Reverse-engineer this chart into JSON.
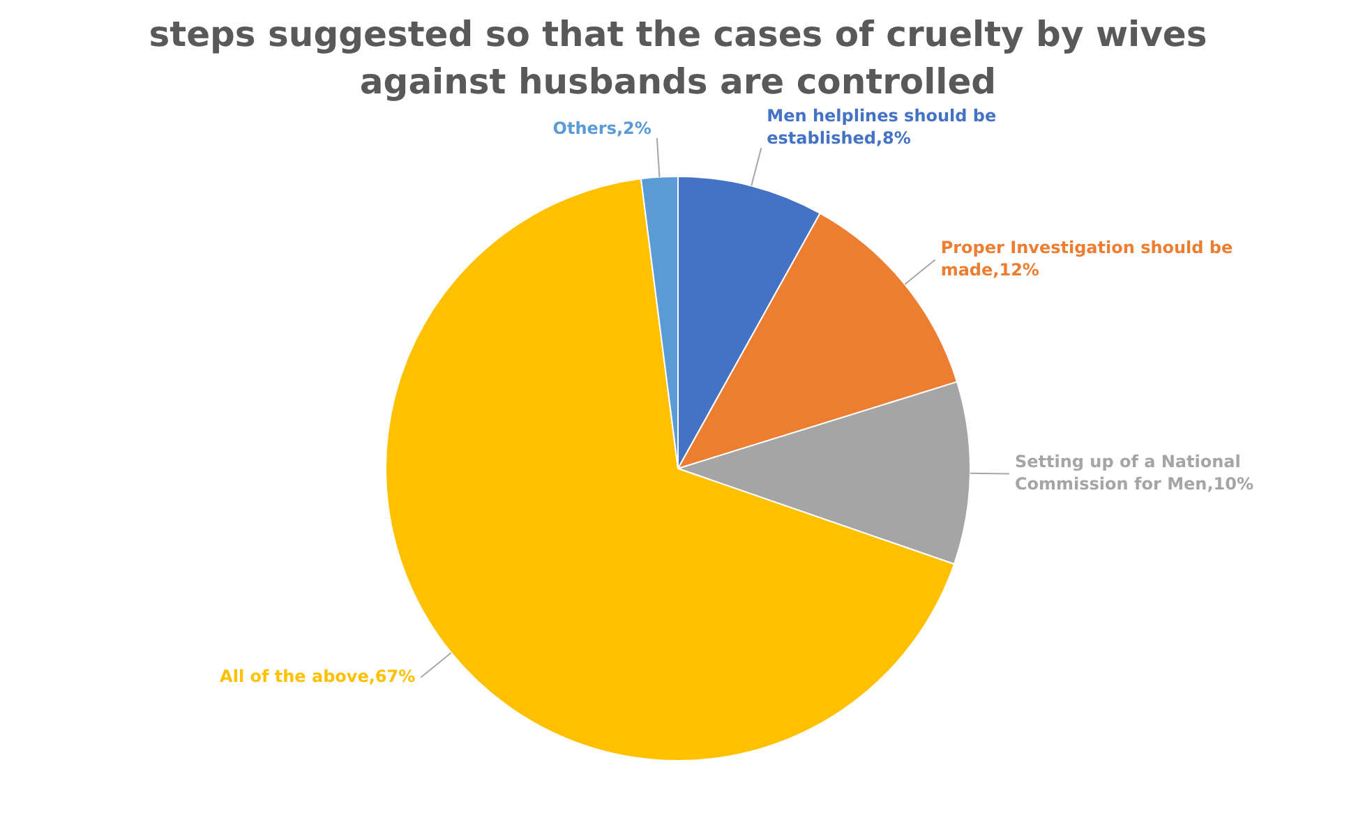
{
  "chart_data": {
    "type": "pie",
    "title": "steps suggested so that the cases of cruelty by wives against husbands are controlled",
    "categories": [
      "Men helplines should be established",
      "Proper Investigation should be made",
      "Setting up of a National Commission for Men",
      "All of the above",
      "Others"
    ],
    "values": [
      8,
      12,
      10,
      67,
      2
    ],
    "value_labels": [
      "8%",
      "12%",
      "10%",
      "67%",
      "2%"
    ],
    "colors": [
      "#4472c4",
      "#ed7d31",
      "#a5a5a5",
      "#ffc000",
      "#5b9bd5"
    ],
    "legend": false
  }
}
